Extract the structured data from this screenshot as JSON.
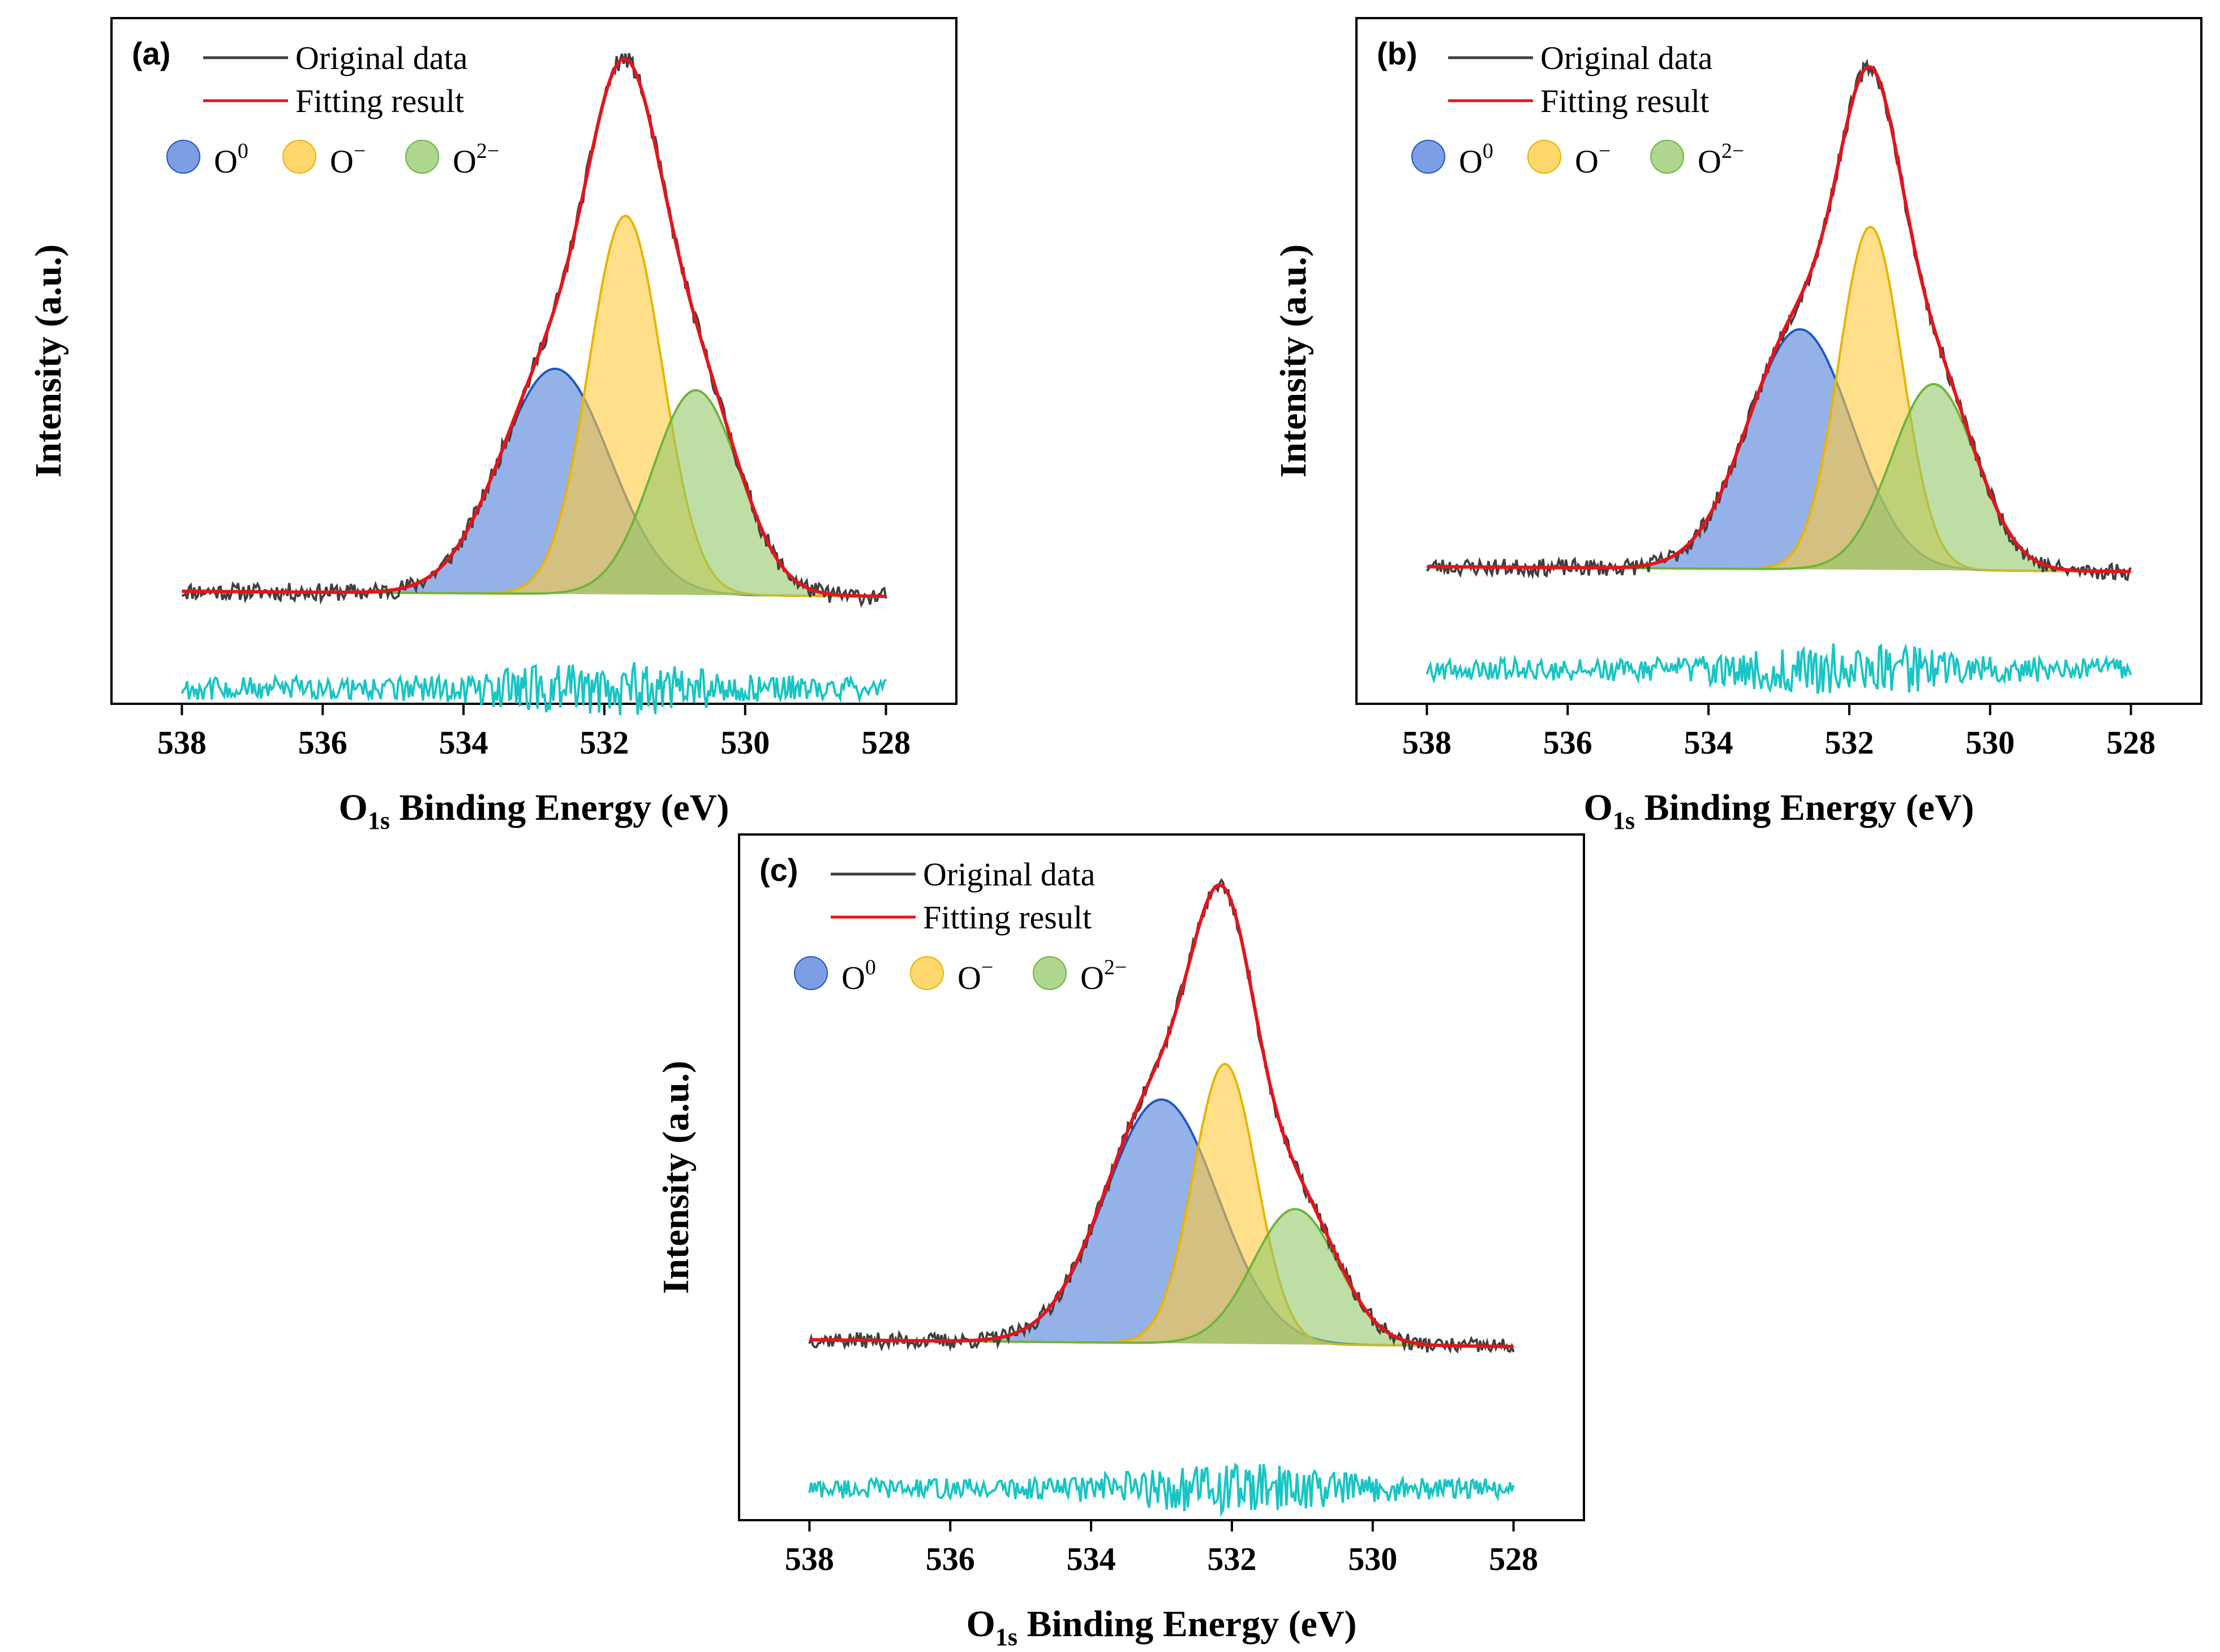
{
  "legend": {
    "original_label": "Original data",
    "fitting_label": "Fitting result",
    "components": [
      {
        "base": "O",
        "sup": "0",
        "color": "#4F7FD8"
      },
      {
        "base": "O",
        "sup": "−",
        "color": "#FFC93C"
      },
      {
        "base": "O",
        "sup": "2−",
        "color": "#93C86A"
      }
    ]
  },
  "colors": {
    "original": "#404040",
    "fitting": "#E3151B",
    "residual": "#19C4C4",
    "O0_line": "#1F56C4",
    "Ominus_line": "#E7B400",
    "O2minus_line": "#6FB43A"
  },
  "chart_data": [
    {
      "type": "line",
      "panel_label": "(a)",
      "xlabel_main": "O",
      "xlabel_sub": "1s",
      "xlabel_rest": " Binding Energy (eV)",
      "ylabel": "Intensity (a.u.)",
      "xlim": [
        539,
        527
      ],
      "ylim": [
        -0.22,
        1.12
      ],
      "xticks": [
        538,
        536,
        534,
        532,
        530,
        528
      ],
      "xtick_labels": [
        "538",
        "536",
        "534",
        "532",
        "530",
        "528"
      ],
      "baseline": {
        "x": [
          538,
          528
        ],
        "y": [
          0.0,
          -0.01
        ]
      },
      "components": [
        {
          "name": "O0",
          "center": 532.7,
          "height": 0.44,
          "sigma": 0.78
        },
        {
          "name": "O-",
          "center": 531.7,
          "height": 0.74,
          "sigma": 0.52
        },
        {
          "name": "O2-",
          "center": 530.7,
          "height": 0.4,
          "sigma": 0.62
        }
      ],
      "fit_peak": {
        "x": 531.7,
        "y": 1.04
      },
      "residual_offset": -0.19,
      "noise_seed": 11
    },
    {
      "type": "line",
      "panel_label": "(b)",
      "xlabel_main": "O",
      "xlabel_sub": "1s",
      "xlabel_rest": " Binding Energy (eV)",
      "ylabel": "Intensity (a.u.)",
      "xlim": [
        539,
        527
      ],
      "ylim": [
        -0.28,
        1.12
      ],
      "xticks": [
        538,
        536,
        534,
        532,
        530,
        528
      ],
      "xtick_labels": [
        "538",
        "536",
        "534",
        "532",
        "530",
        "528"
      ],
      "baseline": {
        "x": [
          538,
          528
        ],
        "y": [
          0.0,
          -0.01
        ]
      },
      "components": [
        {
          "name": "O0",
          "center": 532.7,
          "height": 0.49,
          "sigma": 0.74
        },
        {
          "name": "O-",
          "center": 531.7,
          "height": 0.7,
          "sigma": 0.45
        },
        {
          "name": "O2-",
          "center": 530.8,
          "height": 0.38,
          "sigma": 0.6
        }
      ],
      "fit_peak": {
        "x": 531.7,
        "y": 1.02
      },
      "residual_offset": -0.21,
      "noise_seed": 23
    },
    {
      "type": "line",
      "panel_label": "(c)",
      "xlabel_main": "O",
      "xlabel_sub": "1s",
      "xlabel_rest": " Binding Energy (eV)",
      "ylabel": "Intensity (a.u.)",
      "xlim": [
        539,
        527
      ],
      "ylim": [
        -0.4,
        1.12
      ],
      "xticks": [
        538,
        536,
        534,
        532,
        530,
        528
      ],
      "xtick_labels": [
        "538",
        "536",
        "534",
        "532",
        "530",
        "528"
      ],
      "baseline": {
        "x": [
          538,
          528
        ],
        "y": [
          0.0,
          -0.015
        ]
      },
      "components": [
        {
          "name": "O0",
          "center": 533.0,
          "height": 0.54,
          "sigma": 0.8
        },
        {
          "name": "O-",
          "center": 532.1,
          "height": 0.62,
          "sigma": 0.45
        },
        {
          "name": "O2-",
          "center": 531.1,
          "height": 0.3,
          "sigma": 0.6
        }
      ],
      "fit_peak": {
        "x": 532.1,
        "y": 1.0
      },
      "residual_offset": -0.33,
      "noise_seed": 37
    }
  ]
}
